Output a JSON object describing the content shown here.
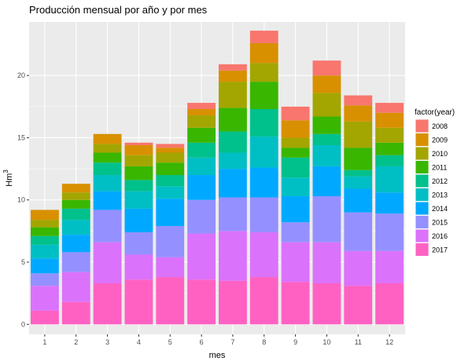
{
  "chart_data": {
    "type": "bar",
    "stacked": true,
    "title": "Producción mensual por año y por mes",
    "xlabel": "mes",
    "ylabel_main": "Hm",
    "ylabel_sup": "3",
    "ylim": [
      -0.8,
      24.3
    ],
    "yticks": [
      0,
      5,
      10,
      15,
      20
    ],
    "categories": [
      "1",
      "2",
      "3",
      "4",
      "5",
      "6",
      "7",
      "8",
      "9",
      "10",
      "11",
      "12"
    ],
    "legend_title": "factor(year)",
    "legend_position": "right",
    "grid": true,
    "series": [
      {
        "name": "2017",
        "color": "#FF61C3",
        "values": [
          1.1,
          1.8,
          3.3,
          3.6,
          3.8,
          3.6,
          3.5,
          3.8,
          3.4,
          3.3,
          3.1,
          3.3
        ]
      },
      {
        "name": "2016",
        "color": "#DB72FB",
        "values": [
          2.0,
          2.4,
          3.3,
          2.0,
          1.6,
          3.7,
          4.0,
          3.6,
          3.2,
          3.3,
          2.8,
          2.6
        ]
      },
      {
        "name": "2015",
        "color": "#9590FF",
        "values": [
          1.0,
          1.6,
          2.6,
          1.8,
          2.5,
          2.7,
          2.7,
          2.8,
          1.6,
          3.7,
          3.1,
          3.0
        ]
      },
      {
        "name": "2014",
        "color": "#00A9FF",
        "values": [
          1.2,
          1.4,
          1.5,
          1.9,
          2.2,
          2.0,
          2.3,
          2.4,
          2.1,
          2.4,
          1.9,
          1.7
        ]
      },
      {
        "name": "2013",
        "color": "#00BFC4",
        "values": [
          1.1,
          1.2,
          1.3,
          1.4,
          1.0,
          1.4,
          1.3,
          2.5,
          1.5,
          1.7,
          1.0,
          2.1
        ]
      },
      {
        "name": "2012",
        "color": "#00C08B",
        "values": [
          0.7,
          0.9,
          1.0,
          0.9,
          0.9,
          1.2,
          1.7,
          2.2,
          1.6,
          0.9,
          0.5,
          0.9
        ]
      },
      {
        "name": "2011",
        "color": "#39B600",
        "values": [
          0.7,
          0.7,
          0.8,
          1.1,
          1.0,
          1.2,
          1.9,
          2.2,
          0.8,
          1.4,
          1.8,
          1.0
        ]
      },
      {
        "name": "2010",
        "color": "#A3A500",
        "values": [
          0.6,
          0.6,
          0.7,
          0.9,
          0.8,
          1.0,
          2.1,
          1.5,
          0.8,
          1.9,
          2.1,
          1.2
        ]
      },
      {
        "name": "2009",
        "color": "#D89000",
        "values": [
          0.8,
          0.7,
          0.8,
          0.8,
          0.4,
          0.5,
          0.9,
          1.6,
          1.4,
          1.4,
          1.3,
          1.2
        ]
      },
      {
        "name": "2008",
        "color": "#F8766D",
        "values": [
          0.0,
          0.0,
          0.0,
          0.2,
          0.3,
          0.5,
          0.5,
          1.0,
          1.1,
          1.2,
          0.8,
          0.8
        ]
      }
    ],
    "legend_order": [
      "2008",
      "2009",
      "2010",
      "2011",
      "2012",
      "2013",
      "2014",
      "2015",
      "2016",
      "2017"
    ]
  }
}
